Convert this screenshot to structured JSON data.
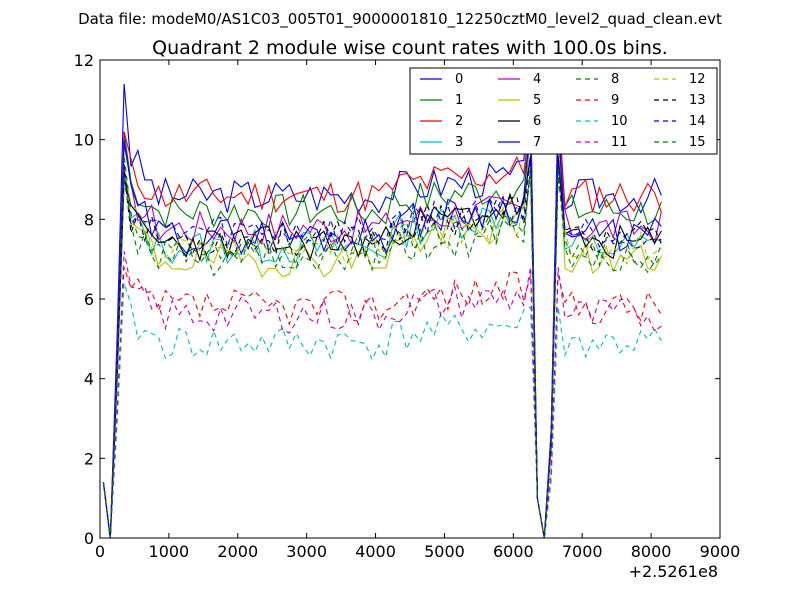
{
  "chart_data": {
    "type": "line",
    "suptitle": "Data file: modeM0/AS1C03_005T01_9000001810_12250cztM0_level2_quad_clean.evt",
    "title": "Quadrant 2 module wise count rates with 100.0s bins.",
    "xlabel": "",
    "ylabel": "",
    "x_offset_label": "+2.5261e8",
    "xlim": [
      0,
      9000
    ],
    "ylim": [
      0,
      12
    ],
    "x_ticks": [
      0,
      1000,
      2000,
      3000,
      4000,
      5000,
      6000,
      7000,
      8000,
      9000
    ],
    "y_ticks": [
      0,
      2,
      4,
      6,
      8,
      10,
      12
    ],
    "grid": false,
    "legend_position": "top-right",
    "x": [
      50,
      150,
      250,
      350,
      450,
      550,
      650,
      750,
      850,
      950,
      1050,
      1150,
      1250,
      1350,
      1450,
      1550,
      1650,
      1750,
      1850,
      1950,
      2050,
      2150,
      2250,
      2350,
      2450,
      2550,
      2650,
      2750,
      2850,
      2950,
      3050,
      3150,
      3250,
      3350,
      3450,
      3550,
      3650,
      3750,
      3850,
      3950,
      4050,
      4150,
      4250,
      4350,
      4450,
      4550,
      4650,
      4750,
      4850,
      4950,
      5050,
      5150,
      5250,
      5350,
      5450,
      5550,
      5650,
      5750,
      5850,
      5950,
      6050,
      6150,
      6250,
      6350,
      6450,
      6550,
      6650,
      6750,
      6850,
      6950,
      7050,
      7150,
      7250,
      7350,
      7450,
      7550,
      7650,
      7750,
      7850,
      7950,
      8050,
      8150
    ],
    "series": [
      {
        "name": "0",
        "color": "#0000ff",
        "style": "solid",
        "base": 8.6,
        "start": 11.4,
        "peak": 11.0,
        "trend": 0.3,
        "seed": 3
      },
      {
        "name": "1",
        "color": "#008000",
        "style": "solid",
        "base": 8.2,
        "start": 10.2,
        "peak": 10.2,
        "trend": 0.4,
        "seed": 7
      },
      {
        "name": "2",
        "color": "#ff0000",
        "style": "solid",
        "base": 8.6,
        "start": 10.2,
        "peak": 10.6,
        "trend": 0.4,
        "seed": 11
      },
      {
        "name": "3",
        "color": "#00bfbf",
        "style": "solid",
        "base": 7.3,
        "start": 9.2,
        "peak": 9.6,
        "trend": 0.6,
        "seed": 13
      },
      {
        "name": "4",
        "color": "#bf00bf",
        "style": "solid",
        "base": 7.8,
        "start": 9.9,
        "peak": 10.2,
        "trend": 0.3,
        "seed": 17
      },
      {
        "name": "5",
        "color": "#bfbf00",
        "style": "solid",
        "base": 7.0,
        "start": 9.4,
        "peak": 10.4,
        "trend": 0.6,
        "seed": 19
      },
      {
        "name": "6",
        "color": "#000000",
        "style": "solid",
        "base": 7.4,
        "start": 9.0,
        "peak": 9.6,
        "trend": 0.6,
        "seed": 23
      },
      {
        "name": "7",
        "color": "#0000ff",
        "style": "solid",
        "base": 7.6,
        "start": 10.0,
        "peak": 10.4,
        "trend": 0.5,
        "seed": 29
      },
      {
        "name": "8",
        "color": "#008000",
        "style": "dashed",
        "base": 7.2,
        "start": 9.6,
        "peak": 9.4,
        "trend": 0.4,
        "seed": 31
      },
      {
        "name": "9",
        "color": "#ff0000",
        "style": "dashed",
        "base": 5.8,
        "start": 6.8,
        "peak": 6.6,
        "trend": 0.3,
        "seed": 37
      },
      {
        "name": "10",
        "color": "#00bfbf",
        "style": "dashed",
        "base": 4.9,
        "start": 6.4,
        "peak": 5.8,
        "trend": 0.3,
        "seed": 41
      },
      {
        "name": "11",
        "color": "#bf00bf",
        "style": "dashed",
        "base": 5.6,
        "start": 7.2,
        "peak": 6.8,
        "trend": 0.3,
        "seed": 43
      },
      {
        "name": "12",
        "color": "#bfbf00",
        "style": "dashed",
        "base": 7.3,
        "start": 9.2,
        "peak": 9.0,
        "trend": 0.4,
        "seed": 47
      },
      {
        "name": "13",
        "color": "#000000",
        "style": "dashed",
        "base": 7.5,
        "start": 9.2,
        "peak": 9.2,
        "trend": 0.5,
        "seed": 53
      },
      {
        "name": "14",
        "color": "#0000ff",
        "style": "dashed",
        "base": 7.7,
        "start": 9.4,
        "peak": 9.6,
        "trend": 0.4,
        "seed": 59
      },
      {
        "name": "15",
        "color": "#008000",
        "style": "dashed",
        "base": 7.0,
        "start": 9.0,
        "peak": 9.2,
        "trend": 0.4,
        "seed": 61
      }
    ]
  }
}
